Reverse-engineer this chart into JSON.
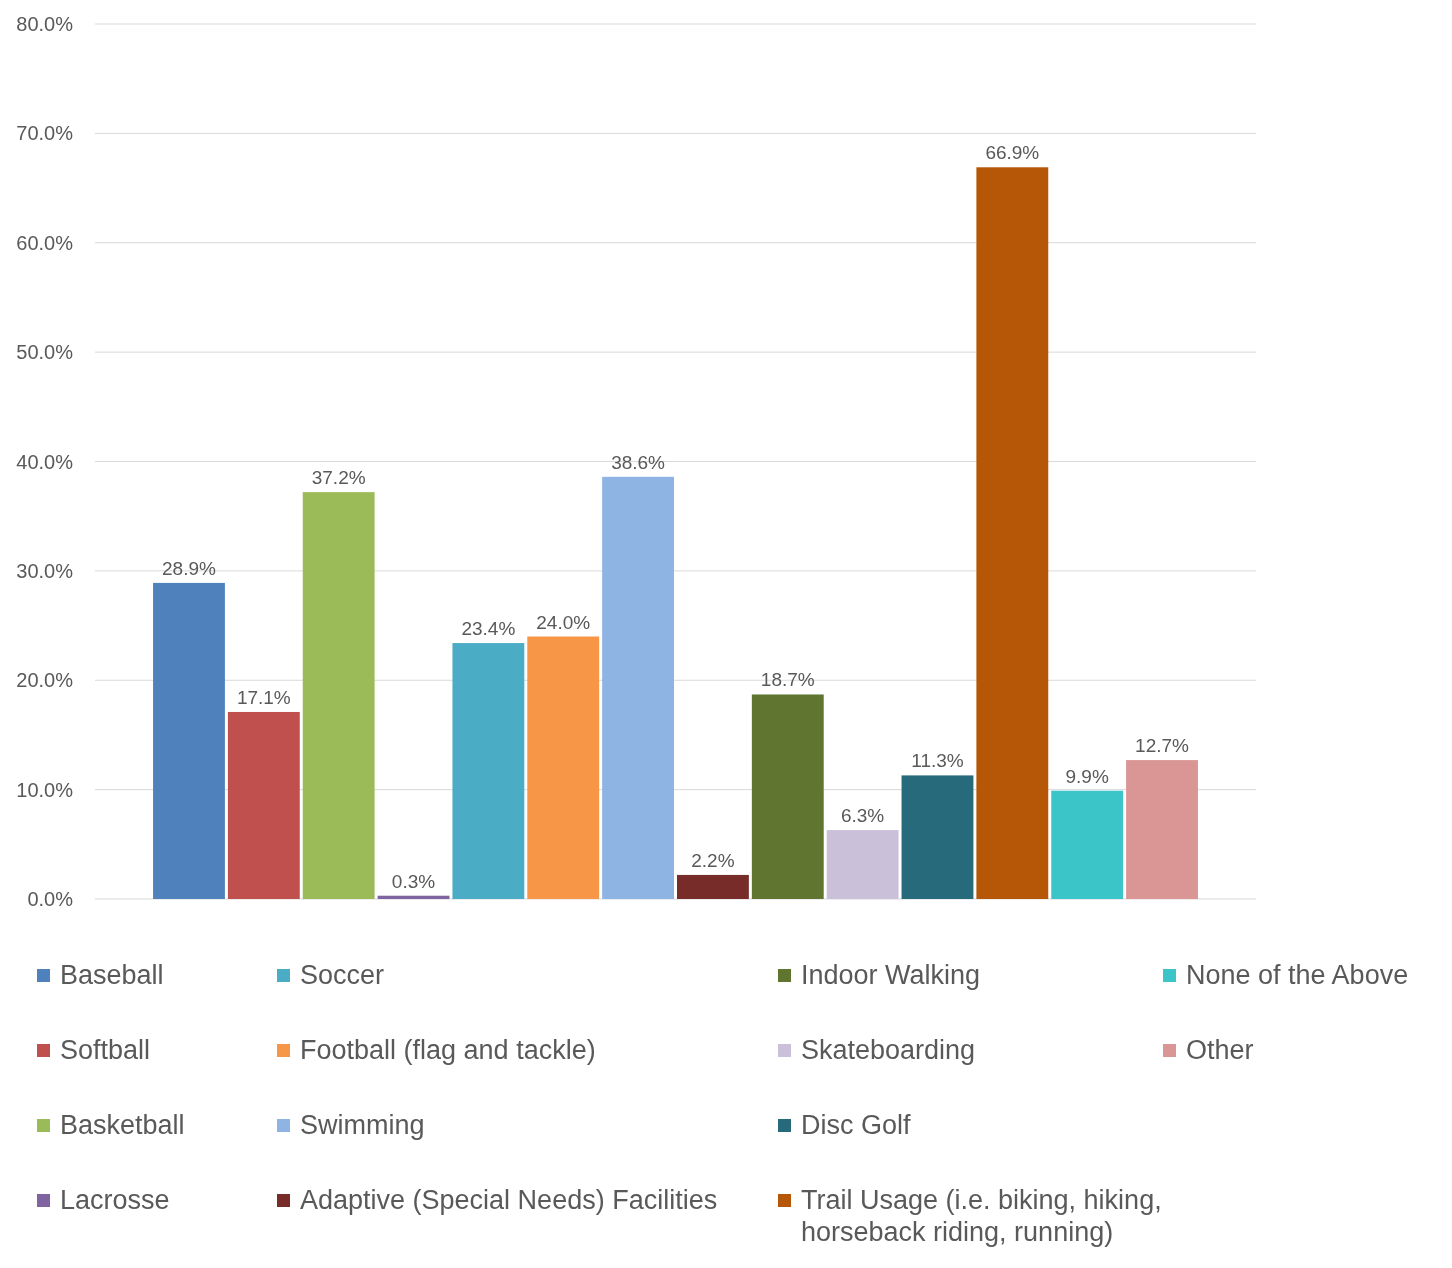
{
  "chart_data": {
    "type": "bar",
    "categories": [
      null
    ],
    "series": [
      {
        "name": "Baseball",
        "color": "#4f81bd",
        "values": [
          28.9
        ],
        "value_labels": [
          "28.9%"
        ]
      },
      {
        "name": "Softball",
        "color": "#c0504d",
        "values": [
          17.1
        ],
        "value_labels": [
          "17.1%"
        ]
      },
      {
        "name": "Basketball",
        "color": "#9bbb59",
        "values": [
          37.2
        ],
        "value_labels": [
          "37.2%"
        ]
      },
      {
        "name": "Lacrosse",
        "color": "#8064a2",
        "values": [
          0.3
        ],
        "value_labels": [
          "0.3%"
        ]
      },
      {
        "name": "Soccer",
        "color": "#4bacc6",
        "values": [
          23.4
        ],
        "value_labels": [
          "23.4%"
        ]
      },
      {
        "name": "Football (flag and tackle)",
        "color": "#f79646",
        "values": [
          24.0
        ],
        "value_labels": [
          "24.0%"
        ]
      },
      {
        "name": "Swimming",
        "color": "#8eb4e3",
        "values": [
          38.6
        ],
        "value_labels": [
          "38.6%"
        ]
      },
      {
        "name": "Adaptive (Special Needs) Facilities",
        "color": "#772c2a",
        "values": [
          2.2
        ],
        "value_labels": [
          "2.2%"
        ]
      },
      {
        "name": "Indoor Walking",
        "color": "#5f7530",
        "values": [
          18.7
        ],
        "value_labels": [
          "18.7%"
        ]
      },
      {
        "name": "Skateboarding",
        "color": "#cbc0da",
        "values": [
          6.3
        ],
        "value_labels": [
          "6.3%"
        ]
      },
      {
        "name": "Disc Golf",
        "color": "#276a7c",
        "values": [
          11.3
        ],
        "value_labels": [
          "11.3%"
        ]
      },
      {
        "name": "Trail Usage (i.e. biking, hiking, horseback riding, running)",
        "color": "#b65708",
        "values": [
          66.9
        ],
        "value_labels": [
          "66.9%"
        ]
      },
      {
        "name": "None of the Above",
        "color": "#3bc5c9",
        "values": [
          9.9
        ],
        "value_labels": [
          "9.9%"
        ]
      },
      {
        "name": "Other",
        "color": "#d99694",
        "values": [
          12.7
        ],
        "value_labels": [
          "12.7%"
        ]
      }
    ],
    "ylim": [
      0,
      80
    ],
    "yticks": [
      {
        "value": 0,
        "label": "0.0%"
      },
      {
        "value": 10,
        "label": "10.0%"
      },
      {
        "value": 20,
        "label": "20.0%"
      },
      {
        "value": 30,
        "label": "30.0%"
      },
      {
        "value": 40,
        "label": "40.0%"
      },
      {
        "value": 50,
        "label": "50.0%"
      },
      {
        "value": 60,
        "label": "60.0%"
      },
      {
        "value": 70,
        "label": "70.0%"
      },
      {
        "value": 80,
        "label": "80.0%"
      }
    ],
    "grid": "y",
    "legend": "bottom"
  }
}
